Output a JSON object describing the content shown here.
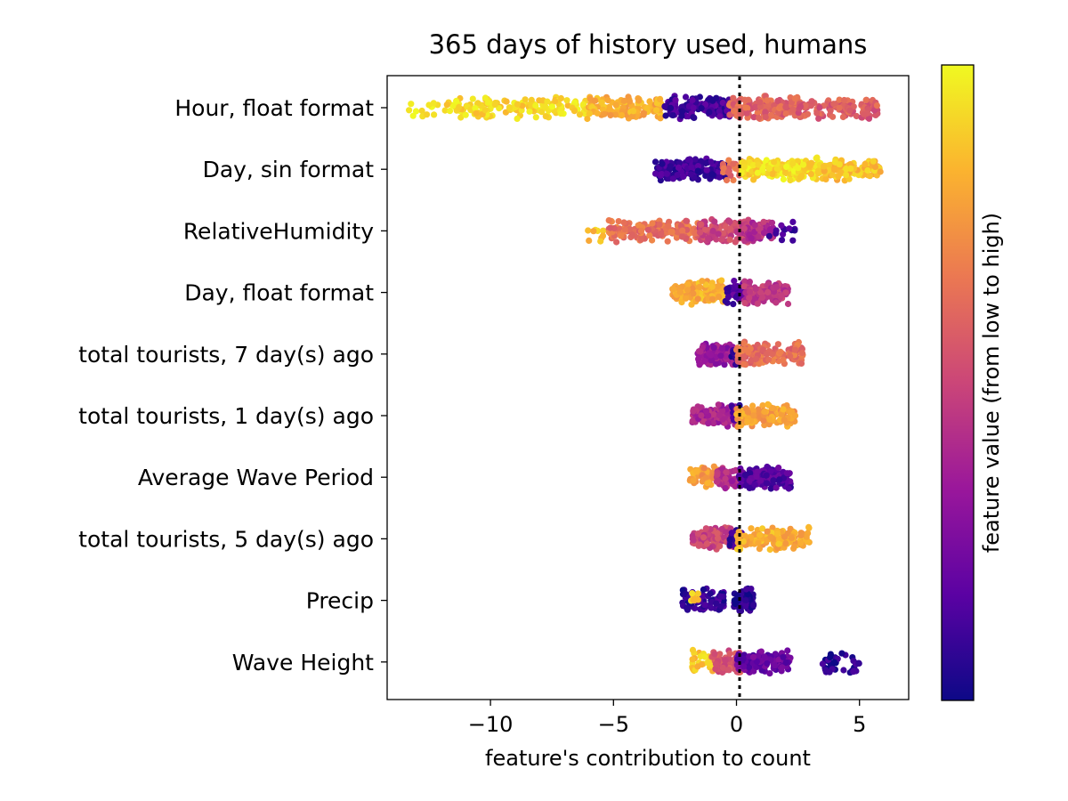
{
  "chart_data": {
    "type": "scatter",
    "subtype": "beeswarm",
    "title": "365 days of history used, humans",
    "xlabel": "feature's contribution to count",
    "ylabel": "",
    "xlim": [
      -14.2,
      7.0
    ],
    "xticks": [
      -10,
      -5,
      0,
      5
    ],
    "xtick_labels": [
      "−10",
      "−5",
      "0",
      "5"
    ],
    "zero_line": {
      "x": 0,
      "style": "dotted",
      "color": "#000000"
    },
    "grid": false,
    "colorbar": {
      "label": "feature value (from low to high)",
      "colormap": "plasma",
      "stops": [
        "#0d0887",
        "#5b02a3",
        "#9a179b",
        "#cb4678",
        "#eb7852",
        "#fbb32f",
        "#f0f921"
      ],
      "placement": "right"
    },
    "categories": [
      "Hour, float format",
      "Day, sin format",
      "RelativeHumidity",
      "Day, float format",
      "total tourists, 7 day(s) ago",
      "total tourists, 1 day(s) ago",
      "Average Wave Period",
      "total tourists, 5 day(s) ago",
      "Precip",
      "Wave Height"
    ],
    "series": [
      {
        "segments": [
          {
            "min": -13.5,
            "max": -11.8,
            "n": 14,
            "color": 0.97
          },
          {
            "min": -11.8,
            "max": -6.0,
            "n": 150,
            "color": 0.92
          },
          {
            "min": -6.0,
            "max": -3.0,
            "n": 120,
            "color": 0.82
          },
          {
            "min": -3.0,
            "max": -0.2,
            "n": 150,
            "color": 0.12
          },
          {
            "min": -0.3,
            "max": 2.5,
            "n": 170,
            "color": 0.6
          },
          {
            "min": 2.5,
            "max": 5.8,
            "n": 120,
            "color": 0.58
          }
        ]
      },
      {
        "segments": [
          {
            "min": -3.3,
            "max": -0.3,
            "n": 140,
            "color": 0.1
          },
          {
            "min": -0.6,
            "max": 0.3,
            "n": 40,
            "color": 0.62
          },
          {
            "min": 0.2,
            "max": 3.5,
            "n": 200,
            "color": 0.93
          },
          {
            "min": 3.5,
            "max": 5.9,
            "n": 110,
            "color": 0.86
          }
        ]
      },
      {
        "segments": [
          {
            "min": -6.1,
            "max": -5.0,
            "n": 12,
            "color": 0.85
          },
          {
            "min": -5.2,
            "max": -1.5,
            "n": 170,
            "color": 0.64
          },
          {
            "min": -1.5,
            "max": 0.5,
            "n": 110,
            "color": 0.5
          },
          {
            "min": 0.3,
            "max": 1.5,
            "n": 70,
            "color": 0.42
          },
          {
            "min": 1.3,
            "max": 2.5,
            "n": 14,
            "color": 0.12
          }
        ]
      },
      {
        "segments": [
          {
            "min": -2.6,
            "max": -0.3,
            "n": 130,
            "color": 0.82
          },
          {
            "min": -0.5,
            "max": 0.6,
            "n": 50,
            "color": 0.15
          },
          {
            "min": 0.3,
            "max": 2.1,
            "n": 120,
            "color": 0.45
          }
        ]
      },
      {
        "segments": [
          {
            "min": -1.6,
            "max": 0.0,
            "n": 120,
            "color": 0.32
          },
          {
            "min": -0.2,
            "max": 0.3,
            "n": 30,
            "color": 0.1
          },
          {
            "min": 0.0,
            "max": 2.7,
            "n": 140,
            "color": 0.64
          }
        ]
      },
      {
        "segments": [
          {
            "min": -1.8,
            "max": 0.0,
            "n": 110,
            "color": 0.38
          },
          {
            "min": -0.2,
            "max": 0.3,
            "n": 30,
            "color": 0.1
          },
          {
            "min": 0.0,
            "max": 2.4,
            "n": 140,
            "color": 0.78
          }
        ]
      },
      {
        "segments": [
          {
            "min": -1.9,
            "max": -0.6,
            "n": 60,
            "color": 0.78
          },
          {
            "min": -0.8,
            "max": 0.3,
            "n": 70,
            "color": 0.4
          },
          {
            "min": 0.1,
            "max": 2.2,
            "n": 150,
            "color": 0.15
          }
        ]
      },
      {
        "segments": [
          {
            "min": -1.8,
            "max": 0.0,
            "n": 110,
            "color": 0.5
          },
          {
            "min": -0.3,
            "max": 0.3,
            "n": 30,
            "color": 0.12
          },
          {
            "min": 0.0,
            "max": 3.0,
            "n": 150,
            "color": 0.82
          }
        ]
      },
      {
        "segments": [
          {
            "min": -2.2,
            "max": -0.5,
            "n": 80,
            "color": 0.08
          },
          {
            "min": -1.9,
            "max": -1.4,
            "n": 8,
            "color": 0.88
          },
          {
            "min": -0.1,
            "max": 0.7,
            "n": 90,
            "color": 0.06
          }
        ]
      },
      {
        "segments": [
          {
            "min": -1.8,
            "max": -0.8,
            "n": 40,
            "color": 0.88
          },
          {
            "min": -1.0,
            "max": 0.2,
            "n": 70,
            "color": 0.55
          },
          {
            "min": 0.0,
            "max": 2.2,
            "n": 140,
            "color": 0.2
          },
          {
            "min": 3.5,
            "max": 5.0,
            "n": 40,
            "color": 0.06
          }
        ]
      }
    ]
  }
}
